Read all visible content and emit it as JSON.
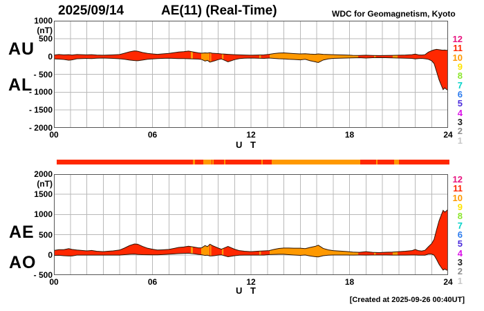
{
  "header": {
    "date": "2025/09/14",
    "title": "AE(11) (Real-Time)",
    "org": "WDC for Geomagnetism, Kyoto"
  },
  "footer": {
    "created": "[Created at 2025-09-26 00:40UT]"
  },
  "station_scale": {
    "levels": [
      {
        "n": "12",
        "color": "#e81480"
      },
      {
        "n": "11",
        "color": "#ff2800"
      },
      {
        "n": "10",
        "color": "#ff9900"
      },
      {
        "n": "9",
        "color": "#ffe400"
      },
      {
        "n": "8",
        "color": "#8ce62e"
      },
      {
        "n": "7",
        "color": "#00d2c8"
      },
      {
        "n": "6",
        "color": "#2b7bee"
      },
      {
        "n": "5",
        "color": "#4b2bdc"
      },
      {
        "n": "4",
        "color": "#da12e8"
      },
      {
        "n": "3",
        "color": "#1a1a1a"
      },
      {
        "n": "2",
        "color": "#8c8c8c"
      },
      {
        "n": "1",
        "color": "#c8c8c8"
      }
    ]
  },
  "grid_color": "#b8b8b8",
  "border_color": "#555555",
  "outline_color": "#2a1200",
  "color_segments": [
    {
      "from": 0.0,
      "to": 8.34,
      "level": "11"
    },
    {
      "from": 8.34,
      "to": 8.46,
      "level": "10"
    },
    {
      "from": 8.46,
      "to": 8.97,
      "level": "11"
    },
    {
      "from": 8.97,
      "to": 9.47,
      "level": "10"
    },
    {
      "from": 9.47,
      "to": 9.52,
      "level": "11"
    },
    {
      "from": 9.52,
      "to": 9.58,
      "level": "10"
    },
    {
      "from": 9.58,
      "to": 10.23,
      "level": "11"
    },
    {
      "from": 10.23,
      "to": 10.32,
      "level": "10"
    },
    {
      "from": 10.32,
      "to": 12.51,
      "level": "11"
    },
    {
      "from": 12.51,
      "to": 12.6,
      "level": "10"
    },
    {
      "from": 12.6,
      "to": 13.14,
      "level": "11"
    },
    {
      "from": 13.14,
      "to": 18.53,
      "level": "10"
    },
    {
      "from": 18.53,
      "to": 19.5,
      "level": "11"
    },
    {
      "from": 19.5,
      "to": 19.6,
      "level": "10"
    },
    {
      "from": 19.6,
      "to": 20.63,
      "level": "11"
    },
    {
      "from": 20.63,
      "to": 20.93,
      "level": "10"
    },
    {
      "from": 20.93,
      "to": 24.0,
      "level": "11"
    }
  ],
  "time_hours": [
    0,
    0.3,
    0.6,
    0.9,
    1.1,
    1.4,
    1.7,
    2,
    2.3,
    2.6,
    3,
    3.3,
    3.6,
    4,
    4.3,
    4.6,
    4.9,
    5.1,
    5.4,
    5.7,
    6,
    6.3,
    6.6,
    7,
    7.3,
    7.6,
    7.9,
    8.2,
    8.5,
    8.8,
    9,
    9.2,
    9.35,
    9.5,
    9.65,
    9.8,
    10,
    10.2,
    10.4,
    10.6,
    10.8,
    11,
    11.3,
    11.6,
    12,
    12.4,
    12.8,
    13.1,
    13.4,
    13.7,
    14,
    14.3,
    14.6,
    15,
    15.3,
    15.6,
    15.9,
    16.1,
    16.4,
    16.7,
    17,
    17.4,
    17.8,
    18.2,
    18.6,
    19,
    19.4,
    19.8,
    20.2,
    20.6,
    21,
    21.4,
    21.8,
    22,
    22.2,
    22.4,
    22.6,
    22.8,
    23,
    23.15,
    23.3,
    23.45,
    23.6,
    23.7,
    23.8,
    23.9,
    24
  ],
  "chart_data": [
    {
      "type": "area",
      "panel": "top",
      "left_labels": [
        "AU",
        "AL"
      ],
      "unit": "(nT)",
      "xlabel": "U T",
      "ylim": [
        -2000,
        1000
      ],
      "xlim_hours": [
        0,
        24
      ],
      "grid": true,
      "xticks": [
        {
          "t": 0,
          "label": "00"
        },
        {
          "t": 6,
          "label": "06"
        },
        {
          "t": 12,
          "label": "12"
        },
        {
          "t": 18,
          "label": "18"
        },
        {
          "t": 24,
          "label": "24"
        }
      ],
      "yticks": [
        {
          "v": 1000,
          "label": "1000"
        },
        {
          "v": 500,
          "label": "500"
        },
        {
          "v": 0,
          "label": "0"
        },
        {
          "v": -500,
          "label": "- 500"
        },
        {
          "v": -1000,
          "label": "- 1000"
        },
        {
          "v": -1500,
          "label": "- 1500"
        },
        {
          "v": -2000,
          "label": "- 2000"
        }
      ],
      "series": [
        {
          "name": "AU",
          "values": [
            40,
            55,
            45,
            50,
            40,
            55,
            50,
            45,
            50,
            40,
            35,
            40,
            45,
            55,
            90,
            130,
            155,
            145,
            110,
            85,
            70,
            60,
            70,
            85,
            105,
            125,
            135,
            150,
            125,
            100,
            90,
            100,
            95,
            105,
            90,
            85,
            80,
            70,
            65,
            60,
            55,
            50,
            45,
            40,
            35,
            40,
            45,
            60,
            80,
            95,
            100,
            90,
            80,
            70,
            75,
            65,
            60,
            70,
            60,
            55,
            50,
            45,
            40,
            30,
            28,
            35,
            28,
            25,
            28,
            30,
            35,
            40,
            50,
            65,
            45,
            40,
            50,
            120,
            160,
            185,
            200,
            190,
            180,
            175,
            180,
            170,
            180
          ]
        },
        {
          "name": "AL",
          "values": [
            -70,
            -75,
            -85,
            -105,
            -95,
            -65,
            -60,
            -55,
            -60,
            -50,
            -45,
            -50,
            -55,
            -65,
            -80,
            -100,
            -115,
            -120,
            -100,
            -80,
            -70,
            -60,
            -55,
            -50,
            -55,
            -60,
            -60,
            -65,
            -70,
            -75,
            -85,
            -130,
            -110,
            -160,
            -140,
            -120,
            -90,
            -70,
            -110,
            -150,
            -120,
            -90,
            -60,
            -50,
            -45,
            -50,
            -55,
            -45,
            -55,
            -65,
            -70,
            -80,
            -85,
            -95,
            -80,
            -120,
            -150,
            -170,
            -100,
            -70,
            -55,
            -50,
            -45,
            -40,
            -35,
            -45,
            -35,
            -32,
            -36,
            -40,
            -45,
            -50,
            -55,
            -70,
            -60,
            -55,
            -65,
            -80,
            -120,
            -200,
            -420,
            -650,
            -820,
            -930,
            -880,
            -920,
            -950
          ]
        }
      ]
    },
    {
      "type": "area",
      "panel": "bottom",
      "left_labels": [
        "AE",
        "AO"
      ],
      "unit": "(nT)",
      "xlabel": "U T",
      "ylim": [
        -500,
        2000
      ],
      "xlim_hours": [
        0,
        24
      ],
      "grid": true,
      "xticks": [
        {
          "t": 0,
          "label": "00"
        },
        {
          "t": 6,
          "label": "06"
        },
        {
          "t": 12,
          "label": "12"
        },
        {
          "t": 18,
          "label": "18"
        },
        {
          "t": 24,
          "label": "24"
        }
      ],
      "yticks": [
        {
          "v": 2000,
          "label": "2000"
        },
        {
          "v": 1500,
          "label": "1500"
        },
        {
          "v": 1000,
          "label": "1000"
        },
        {
          "v": 500,
          "label": "500"
        },
        {
          "v": 0,
          "label": "0"
        },
        {
          "v": -500,
          "label": "- 500"
        }
      ],
      "series": [
        {
          "name": "AE",
          "values": [
            110,
            130,
            130,
            155,
            135,
            120,
            110,
            100,
            110,
            90,
            80,
            90,
            100,
            120,
            170,
            230,
            270,
            265,
            210,
            165,
            140,
            120,
            125,
            135,
            160,
            185,
            195,
            215,
            195,
            175,
            175,
            230,
            205,
            265,
            230,
            205,
            170,
            140,
            175,
            210,
            175,
            140,
            105,
            90,
            80,
            90,
            100,
            105,
            135,
            160,
            170,
            170,
            165,
            165,
            155,
            185,
            210,
            240,
            160,
            125,
            105,
            95,
            85,
            70,
            63,
            80,
            63,
            57,
            64,
            70,
            80,
            90,
            105,
            135,
            105,
            95,
            115,
            200,
            280,
            385,
            620,
            840,
            1000,
            1105,
            1060,
            1090,
            1130
          ]
        },
        {
          "name": "AO",
          "values": [
            -15,
            -10,
            -20,
            -27.5,
            -27.5,
            -5,
            -5,
            -5,
            -5,
            -5,
            -5,
            -5,
            -5,
            -5,
            5,
            15,
            20,
            12.5,
            5,
            2.5,
            0,
            0,
            7.5,
            17.5,
            25,
            32.5,
            37.5,
            42.5,
            27.5,
            12.5,
            2.5,
            -15,
            -7.5,
            -27.5,
            -25,
            -17.5,
            -5,
            0,
            -22.5,
            -45,
            -32.5,
            -20,
            -7.5,
            -5,
            -5,
            -5,
            -5,
            7.5,
            12.5,
            15,
            15,
            5,
            -2.5,
            -12.5,
            -2.5,
            -27.5,
            -45,
            -50,
            -20,
            -7.5,
            -2.5,
            -2.5,
            -2.5,
            -5,
            -3.5,
            -5,
            -3.5,
            -3.5,
            -4,
            -5,
            -5,
            -5,
            -2.5,
            -2.5,
            -7.5,
            -7.5,
            -7.5,
            20,
            20,
            -7.5,
            -110,
            -230,
            -320,
            -377.5,
            -350,
            -375,
            -385
          ]
        }
      ]
    }
  ]
}
